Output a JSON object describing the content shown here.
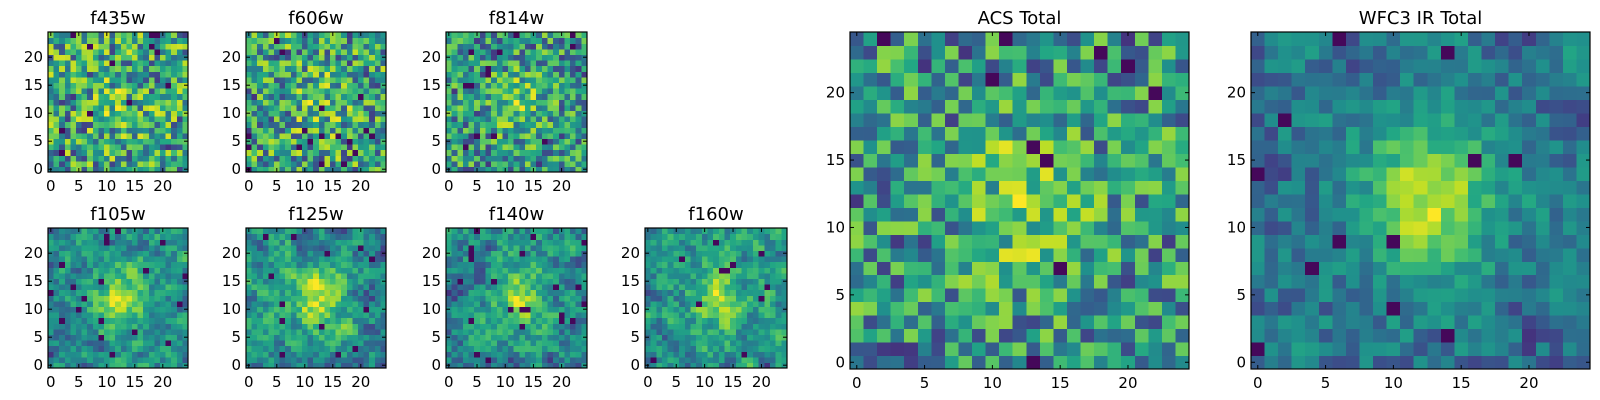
{
  "chart_data": [
    {
      "type": "heatmap",
      "title": "f435w",
      "size": 25,
      "colormap": "viridis",
      "seed": 11,
      "center_strength": 0.15,
      "noise_scale": 1,
      "xticks": [
        0,
        5,
        10,
        15,
        20
      ],
      "yticks": [
        0,
        5,
        10,
        15,
        20
      ]
    },
    {
      "type": "heatmap",
      "title": "f606w",
      "size": 25,
      "colormap": "viridis",
      "seed": 23,
      "center_strength": 0.2,
      "noise_scale": 1,
      "xticks": [
        0,
        5,
        10,
        15,
        20
      ],
      "yticks": [
        0,
        5,
        10,
        15,
        20
      ]
    },
    {
      "type": "heatmap",
      "title": "f814w",
      "size": 25,
      "colormap": "viridis",
      "seed": 37,
      "center_strength": 0.3,
      "noise_scale": 1,
      "xticks": [
        0,
        5,
        10,
        15,
        20
      ],
      "yticks": [
        0,
        5,
        10,
        15,
        20
      ]
    },
    {
      "type": "heatmap",
      "title": "f105w",
      "size": 25,
      "colormap": "viridis",
      "seed": 41,
      "center_strength": 0.5,
      "noise_scale": 1.5,
      "xticks": [
        0,
        5,
        10,
        15,
        20
      ],
      "yticks": [
        0,
        5,
        10,
        15,
        20
      ]
    },
    {
      "type": "heatmap",
      "title": "f125w",
      "size": 25,
      "colormap": "viridis",
      "seed": 53,
      "center_strength": 0.45,
      "noise_scale": 1.5,
      "xticks": [
        0,
        5,
        10,
        15,
        20
      ],
      "yticks": [
        0,
        5,
        10,
        15,
        20
      ]
    },
    {
      "type": "heatmap",
      "title": "f140w",
      "size": 25,
      "colormap": "viridis",
      "seed": 67,
      "center_strength": 0.4,
      "noise_scale": 1.5,
      "xticks": [
        0,
        5,
        10,
        15,
        20
      ],
      "yticks": [
        0,
        5,
        10,
        15,
        20
      ]
    },
    {
      "type": "heatmap",
      "title": "f160w",
      "size": 25,
      "colormap": "viridis",
      "seed": 79,
      "center_strength": 0.4,
      "noise_scale": 1.5,
      "xticks": [
        0,
        5,
        10,
        15,
        20
      ],
      "yticks": [
        0,
        5,
        10,
        15,
        20
      ]
    },
    {
      "type": "heatmap",
      "title": "ACS Total",
      "size": 25,
      "colormap": "viridis",
      "seed": 97,
      "center_strength": 0.35,
      "noise_scale": 1,
      "xticks": [
        0,
        5,
        10,
        15,
        20
      ],
      "yticks": [
        0,
        5,
        10,
        15,
        20
      ]
    },
    {
      "type": "heatmap",
      "title": "WFC3 IR Total",
      "size": 25,
      "colormap": "viridis",
      "seed": 113,
      "center_strength": 0.6,
      "noise_scale": 3,
      "xticks": [
        0,
        5,
        10,
        15,
        20
      ],
      "yticks": [
        0,
        5,
        10,
        15,
        20
      ]
    }
  ]
}
